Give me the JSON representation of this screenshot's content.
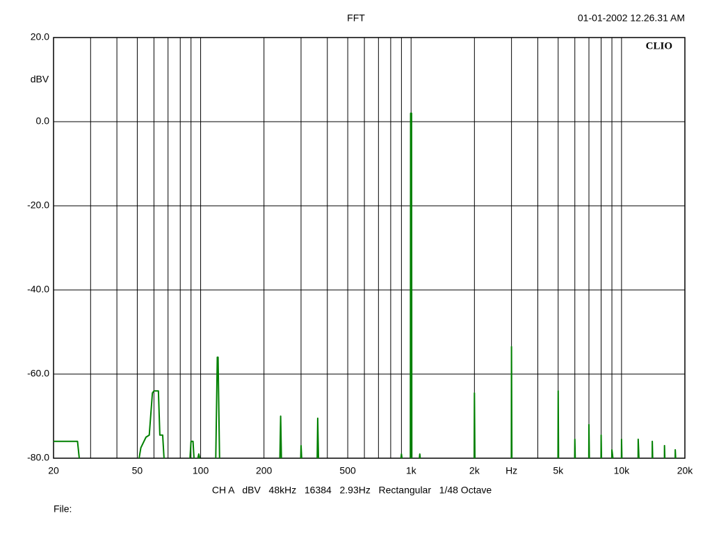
{
  "chart_data": {
    "type": "line",
    "title": "FFT",
    "timestamp": "01-01-2002 12.26.31 AM",
    "logo": "CLIO",
    "ylabel": "dBV",
    "footer": "CH A   dBV   48kHz   16384   2.93Hz   Rectangular   1/48 Octave",
    "file_label": "File:",
    "xscale": "log",
    "grid": true,
    "xlim": [
      20,
      20000
    ],
    "ylim": [
      -80,
      20
    ],
    "xticks": [
      20,
      50,
      100,
      200,
      500,
      {
        "value": 1000,
        "label": "1k"
      },
      {
        "value": 2000,
        "label": "2k"
      },
      {
        "value": 3000,
        "label": "Hz"
      },
      {
        "value": 5000,
        "label": "5k"
      },
      {
        "value": 10000,
        "label": "10k"
      },
      {
        "value": 20000,
        "label": "20k"
      }
    ],
    "xgrid": [
      30,
      40,
      60,
      70,
      80,
      90,
      300,
      400,
      600,
      700,
      800,
      900,
      4000,
      6000,
      7000,
      8000,
      9000
    ],
    "yticks": [
      {
        "value": 20,
        "label": "20.0"
      },
      {
        "value": 0,
        "label": "0.0"
      },
      {
        "value": -20,
        "label": "-20.0"
      },
      {
        "value": -40,
        "label": "-40.0"
      },
      {
        "value": -60,
        "label": "-60.0"
      },
      {
        "value": -80,
        "label": "-80.0"
      }
    ],
    "x": [
      20,
      26,
      26.5,
      null,
      51,
      52,
      55,
      57,
      59,
      60,
      63,
      64,
      66,
      67,
      null,
      89,
      90,
      92,
      93,
      null,
      97,
      98,
      99,
      null,
      118,
      120,
      121,
      123,
      null,
      238,
      240,
      242,
      null,
      299,
      300,
      302,
      null,
      358,
      360,
      363,
      null,
      895,
      900,
      905,
      null,
      992,
      995,
      1005,
      1008,
      null,
      1095,
      1100,
      1105,
      null,
      1995,
      2000,
      2010,
      null,
      2995,
      3000,
      3012,
      null,
      4990,
      5000,
      5020,
      null,
      5990,
      6000,
      6025,
      null,
      6990,
      7000,
      7030,
      null,
      7990,
      8000,
      8030,
      null,
      8990,
      9000,
      9100,
      null,
      9990,
      10000,
      10040,
      null,
      11990,
      12000,
      12100,
      null,
      13990,
      14000,
      14060,
      null,
      15990,
      16000,
      16060,
      null,
      17990,
      18000,
      18080
    ],
    "series": [
      {
        "name": "CH A",
        "color": "#008000",
        "values": [
          -76,
          -76,
          -80,
          null,
          -80,
          -77.5,
          -75,
          -74.5,
          -64.5,
          -64,
          -64,
          -74.5,
          -74.5,
          -80,
          null,
          -80,
          -76,
          -76,
          -80,
          null,
          -80,
          -79,
          -80,
          null,
          -80,
          -56,
          -56,
          -80,
          null,
          -80,
          -70,
          -80,
          null,
          -80,
          -77,
          -80,
          null,
          -80,
          -70.5,
          -80,
          null,
          -80,
          -79,
          -80,
          null,
          -80,
          2,
          2,
          -80,
          null,
          -80,
          -79,
          -80,
          null,
          -80,
          -64.5,
          -80,
          null,
          -80,
          -53.5,
          -80,
          null,
          -80,
          -64,
          -80,
          null,
          -80,
          -75.5,
          -80,
          null,
          -80,
          -72,
          -80,
          null,
          -80,
          -74.5,
          -80,
          null,
          -80,
          -78,
          -80,
          null,
          -80,
          -75.5,
          -80,
          null,
          -80,
          -75.5,
          -80,
          null,
          -80,
          -76,
          -80,
          null,
          -80,
          -77,
          -80,
          null,
          -80,
          -78,
          -80
        ]
      }
    ]
  }
}
